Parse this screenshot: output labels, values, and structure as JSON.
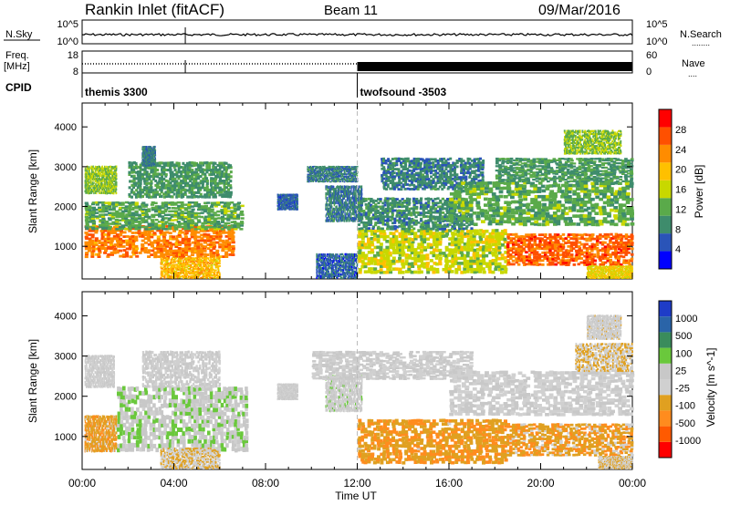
{
  "header": {
    "station": "Rankin Inlet (fitACF)",
    "beam": "Beam 11",
    "date": "09/Mar/2016"
  },
  "labels": {
    "nsky": "N.Sky",
    "nsearch": "N.Search",
    "nsearch_key": "........",
    "freq_line1": "Freq.",
    "freq_line2": "[MHz]",
    "nave": "Nave",
    "nave_key": "....",
    "cpid": "CPID",
    "time_axis": "Time UT"
  },
  "noise_axis": {
    "ticks_left": [
      "10^5",
      "10^0"
    ],
    "ticks_right": [
      "10^5",
      "10^0"
    ]
  },
  "freq_axis": {
    "ticks_left": [
      "18",
      "8"
    ],
    "ticks_right": [
      "60",
      "0"
    ]
  },
  "cpid_segments": [
    {
      "label": "themis 3300",
      "start": 0
    },
    {
      "label": "twofsound -3503",
      "start": 12
    }
  ],
  "colors": {
    "power_scale": [
      "#0000ff",
      "#2a54b8",
      "#3e8c6c",
      "#5aaa4a",
      "#c8d800",
      "#ffc000",
      "#ff8c00",
      "#ff5000",
      "#ff0000"
    ],
    "velocity_scale": [
      "#ff0000",
      "#ff5a00",
      "#ff8c1e",
      "#e0a020",
      "#d0d0d0",
      "#c8c8c8",
      "#6ac83c",
      "#3a8c5c",
      "#2a64a8",
      "#1e3cc8"
    ]
  },
  "chart_data": [
    {
      "type": "heatmap",
      "title": "Power",
      "ylabel": "Slant Range [km]",
      "xlabel": "",
      "x_ticks": [
        "00:00",
        "04:00",
        "08:00",
        "12:00",
        "16:00",
        "20:00",
        "00:00"
      ],
      "xlim_hours": [
        0,
        24
      ],
      "ylim_km": [
        180,
        4600
      ],
      "y_ticks": [
        1000,
        2000,
        3000,
        4000
      ],
      "colorbar_label": "Power [dB]",
      "colorbar_ticks": [
        "28",
        "24",
        "20",
        "16",
        "12",
        "8",
        "4"
      ],
      "colorbar_range": [
        0,
        32
      ],
      "regions": [
        {
          "t0": 0.1,
          "t1": 6.6,
          "r0": 700,
          "r1": 1500,
          "v": 24
        },
        {
          "t0": 0.1,
          "t1": 7.0,
          "r0": 1400,
          "r1": 2100,
          "v": 12
        },
        {
          "t0": 0.1,
          "t1": 1.5,
          "r0": 2300,
          "r1": 3000,
          "v": 14
        },
        {
          "t0": 2.0,
          "t1": 6.5,
          "r0": 2200,
          "r1": 3100,
          "v": 10
        },
        {
          "t0": 3.4,
          "t1": 6.0,
          "r0": 180,
          "r1": 700,
          "v": 20
        },
        {
          "t0": 2.6,
          "t1": 3.2,
          "r0": 3000,
          "r1": 3500,
          "v": 8
        },
        {
          "t0": 8.5,
          "t1": 9.4,
          "r0": 1900,
          "r1": 2300,
          "v": 6
        },
        {
          "t0": 10.6,
          "t1": 12.2,
          "r0": 1600,
          "r1": 2500,
          "v": 8
        },
        {
          "t0": 9.8,
          "t1": 12.0,
          "r0": 2600,
          "r1": 3000,
          "v": 8
        },
        {
          "t0": 10.2,
          "t1": 12.0,
          "r0": 180,
          "r1": 800,
          "v": 6
        },
        {
          "t0": 12.0,
          "t1": 18.5,
          "r0": 300,
          "r1": 1400,
          "v": 16
        },
        {
          "t0": 12.0,
          "t1": 17.0,
          "r0": 1400,
          "r1": 2200,
          "v": 9
        },
        {
          "t0": 13.0,
          "t1": 17.5,
          "r0": 2400,
          "r1": 3200,
          "v": 8
        },
        {
          "t0": 16.0,
          "t1": 24.0,
          "r0": 1500,
          "r1": 2600,
          "v": 12
        },
        {
          "t0": 18.5,
          "t1": 24.0,
          "r0": 500,
          "r1": 1300,
          "v": 26
        },
        {
          "t0": 18.0,
          "t1": 24.0,
          "r0": 2600,
          "r1": 3200,
          "v": 10
        },
        {
          "t0": 21.0,
          "t1": 23.5,
          "r0": 3300,
          "r1": 3900,
          "v": 14
        },
        {
          "t0": 22.0,
          "t1": 24.0,
          "r0": 180,
          "r1": 500,
          "v": 18
        }
      ]
    },
    {
      "type": "heatmap",
      "title": "Velocity",
      "ylabel": "Slant Range [km]",
      "xlabel": "Time UT",
      "x_ticks": [
        "00:00",
        "04:00",
        "08:00",
        "12:00",
        "16:00",
        "20:00",
        "00:00"
      ],
      "xlim_hours": [
        0,
        24
      ],
      "ylim_km": [
        180,
        4600
      ],
      "y_ticks": [
        1000,
        2000,
        3000,
        4000
      ],
      "colorbar_label": "Velocity [m s^-1]",
      "colorbar_ticks": [
        "1000",
        "500",
        "100",
        "25",
        "-25",
        "-100",
        "-500",
        "-1000"
      ],
      "colorbar_range": [
        -1200,
        1200
      ],
      "regions": [
        {
          "t0": 0.1,
          "t1": 1.5,
          "r0": 600,
          "r1": 1500,
          "v": -400
        },
        {
          "t0": 1.5,
          "t1": 7.2,
          "r0": 600,
          "r1": 2200,
          "v": 150
        },
        {
          "t0": 0.1,
          "t1": 1.4,
          "r0": 2200,
          "r1": 3000,
          "v": -10
        },
        {
          "t0": 2.6,
          "t1": 6.0,
          "r0": 2200,
          "r1": 3100,
          "v": -10
        },
        {
          "t0": 3.4,
          "t1": 6.0,
          "r0": 180,
          "r1": 700,
          "v": -200
        },
        {
          "t0": 8.5,
          "t1": 9.4,
          "r0": 1900,
          "r1": 2300,
          "v": -10
        },
        {
          "t0": 10.6,
          "t1": 12.2,
          "r0": 1600,
          "r1": 2500,
          "v": 60
        },
        {
          "t0": 10.0,
          "t1": 17.0,
          "r0": 2400,
          "r1": 3100,
          "v": -10
        },
        {
          "t0": 12.0,
          "t1": 18.5,
          "r0": 300,
          "r1": 1400,
          "v": -450
        },
        {
          "t0": 16.0,
          "t1": 24.0,
          "r0": 1500,
          "r1": 2600,
          "v": -15
        },
        {
          "t0": 18.5,
          "t1": 24.0,
          "r0": 500,
          "r1": 1300,
          "v": -380
        },
        {
          "t0": 21.5,
          "t1": 24.0,
          "r0": 2600,
          "r1": 3300,
          "v": -200
        },
        {
          "t0": 22.0,
          "t1": 23.5,
          "r0": 3400,
          "r1": 4000,
          "v": -60
        },
        {
          "t0": 22.5,
          "t1": 24.0,
          "r0": 180,
          "r1": 500,
          "v": -200
        }
      ]
    }
  ]
}
